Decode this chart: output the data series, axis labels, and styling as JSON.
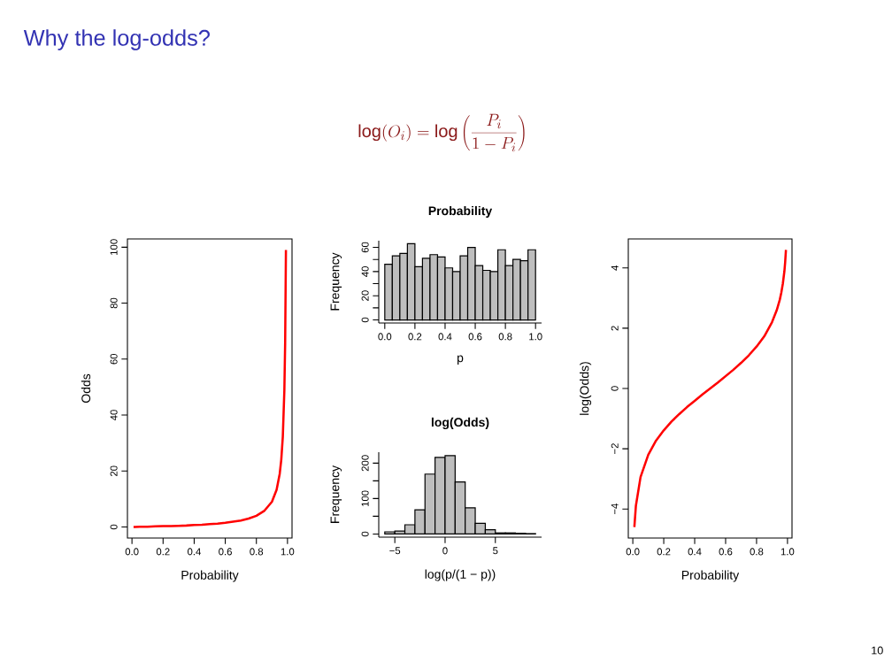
{
  "chart_data": [
    {
      "type": "line",
      "xlabel": "Probability",
      "ylabel": "Odds",
      "annotations": [
        "Why the log-odds?",
        "\\log(O_i) = \\log\\left(\\frac{P_i}{1-P_i}\\right)",
        "10"
      ],
      "x": [
        0.01,
        0.02,
        0.05,
        0.1,
        0.15,
        0.2,
        0.25,
        0.3,
        0.35,
        0.4,
        0.45,
        0.5,
        0.55,
        0.6,
        0.65,
        0.7,
        0.75,
        0.8,
        0.85,
        0.9,
        0.93,
        0.95,
        0.96,
        0.97,
        0.98,
        0.985,
        0.99
      ],
      "values": [
        0,
        0,
        0.1,
        0.1,
        0.2,
        0.3,
        0.3,
        0.4,
        0.5,
        0.7,
        0.8,
        1,
        1.2,
        1.5,
        1.9,
        2.3,
        3,
        4,
        5.7,
        9,
        13.3,
        19,
        24,
        32.3,
        49,
        65.7,
        99
      ],
      "color": "#ff0000",
      "xlim": [
        -0.0292,
        1.0292
      ],
      "ylim": [
        -3.96,
        102.96
      ],
      "xticks": [
        {
          "value": 0,
          "label": "0.0"
        },
        0.2,
        0.4,
        0.6,
        0.8,
        {
          "value": 1,
          "label": "1.0"
        }
      ],
      "yticks": [
        0,
        20,
        40,
        60,
        80,
        100
      ]
    },
    {
      "type": "histogram",
      "title": "Probability",
      "xlabel": "p",
      "ylabel": "Frequency",
      "bins": [
        0,
        0.05,
        0.1,
        0.15,
        0.2,
        0.25,
        0.3,
        0.35,
        0.4,
        0.45,
        0.5,
        0.55,
        0.6,
        0.65,
        0.7,
        0.75,
        0.8,
        0.85,
        0.9,
        0.95,
        1.0
      ],
      "values": [
        46,
        53,
        55,
        63,
        44,
        51,
        54,
        52,
        43,
        40,
        53,
        60,
        45,
        41,
        40,
        58,
        45,
        50,
        49,
        58
      ],
      "color": "#bebebe",
      "xlim": [
        -0.04,
        1.04
      ],
      "ylim": [
        -2.52,
        65.52
      ],
      "xticks": [
        {
          "value": 0,
          "label": "0.0"
        },
        0.2,
        0.4,
        0.6,
        0.8,
        {
          "value": 1,
          "label": "1.0"
        }
      ],
      "yticks": [
        0,
        {
          "value": 10,
          "label": null
        },
        20,
        {
          "value": 30,
          "label": null
        },
        40,
        {
          "value": 50,
          "label": null
        },
        60
      ]
    },
    {
      "type": "histogram",
      "title": "log(Odds)",
      "xlabel": "log(p/(1 − p))",
      "ylabel": "Frequency",
      "bins": [
        -6,
        -5,
        -4,
        -3,
        -2,
        -1,
        0,
        1,
        2,
        3,
        4,
        5,
        6,
        7,
        8,
        9
      ],
      "values": [
        6,
        8,
        26,
        68,
        169,
        216,
        221,
        147,
        74,
        30,
        12,
        3,
        3,
        2,
        1
      ],
      "color": "#bebebe",
      "xlim": [
        -6.6,
        9.6
      ],
      "ylim": [
        -8.9,
        230.9
      ],
      "xticks": [
        {
          "value": -5,
          "label": "−5"
        },
        0,
        5
      ],
      "yticks": [
        0,
        {
          "value": 50,
          "label": null
        },
        100,
        {
          "value": 150,
          "label": null
        },
        200
      ]
    },
    {
      "type": "line",
      "xlabel": "Probability",
      "ylabel": "log(Odds)",
      "x": [
        0.01,
        0.02,
        0.05,
        0.1,
        0.15,
        0.2,
        0.25,
        0.3,
        0.35,
        0.4,
        0.45,
        0.5,
        0.55,
        0.6,
        0.65,
        0.7,
        0.75,
        0.8,
        0.85,
        0.9,
        0.93,
        0.95,
        0.96,
        0.97,
        0.98,
        0.985,
        0.99
      ],
      "values": [
        -4.6,
        -3.89,
        -2.94,
        -2.2,
        -1.73,
        -1.39,
        -1.1,
        -0.85,
        -0.62,
        -0.41,
        -0.2,
        0,
        0.2,
        0.41,
        0.62,
        0.85,
        1.1,
        1.39,
        1.73,
        2.2,
        2.59,
        2.94,
        3.18,
        3.48,
        3.89,
        4.19,
        4.6
      ],
      "color": "#ff0000",
      "xlim": [
        -0.0292,
        1.0292
      ],
      "ylim": [
        -4.963,
        4.963
      ],
      "xticks": [
        {
          "value": 0,
          "label": "0.0"
        },
        0.2,
        0.4,
        0.6,
        0.8,
        {
          "value": 1,
          "label": "1.0"
        }
      ],
      "yticks": [
        {
          "value": -4,
          "label": "−4"
        },
        {
          "value": -2,
          "label": "−2"
        },
        0,
        2,
        4
      ]
    }
  ]
}
